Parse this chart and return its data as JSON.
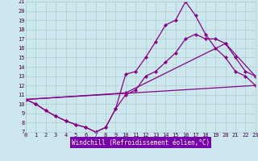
{
  "xlabel": "Windchill (Refroidissement éolien,°C)",
  "xlim": [
    0,
    23
  ],
  "ylim": [
    7,
    21
  ],
  "xticks": [
    0,
    1,
    2,
    3,
    4,
    5,
    6,
    7,
    8,
    9,
    10,
    11,
    12,
    13,
    14,
    15,
    16,
    17,
    18,
    19,
    20,
    21,
    22,
    23
  ],
  "yticks": [
    7,
    8,
    9,
    10,
    11,
    12,
    13,
    14,
    15,
    16,
    17,
    18,
    19,
    20,
    21
  ],
  "bg_color": "#cce8ee",
  "grid_color": "#aacccc",
  "line_color": "#880088",
  "xlabel_bg": "#7700aa",
  "xlabel_color": "#ffffff",
  "tick_color": "#440044",
  "line_width": 0.9,
  "marker": "D",
  "marker_size": 2.2,
  "curves": [
    {
      "x": [
        0,
        1,
        2,
        3,
        4,
        5,
        6,
        7,
        8,
        9,
        10,
        11,
        12,
        13,
        14,
        15,
        16,
        17,
        18,
        19,
        20,
        21,
        22,
        23
      ],
      "y": [
        10.5,
        10.0,
        9.3,
        8.7,
        8.2,
        7.8,
        7.5,
        7.0,
        7.5,
        9.5,
        13.2,
        13.5,
        15.0,
        16.7,
        18.5,
        19.0,
        21.0,
        19.5,
        17.5,
        16.0,
        15.0,
        13.5,
        13.0,
        12.0
      ]
    },
    {
      "x": [
        0,
        1,
        2,
        3,
        4,
        5,
        6,
        7,
        8,
        9,
        10,
        11,
        12,
        13,
        14,
        15,
        16,
        17,
        18,
        19,
        20,
        21,
        22,
        23
      ],
      "y": [
        10.5,
        10.0,
        9.3,
        8.7,
        8.2,
        7.8,
        7.5,
        7.0,
        7.5,
        9.5,
        11.0,
        11.5,
        13.0,
        13.5,
        14.5,
        15.5,
        17.0,
        17.5,
        17.0,
        17.0,
        16.5,
        15.0,
        13.5,
        13.0
      ]
    },
    {
      "x": [
        0,
        23
      ],
      "y": [
        10.5,
        12.0
      ]
    },
    {
      "x": [
        0,
        10,
        20,
        23
      ],
      "y": [
        10.5,
        11.2,
        16.5,
        13.0
      ]
    }
  ]
}
